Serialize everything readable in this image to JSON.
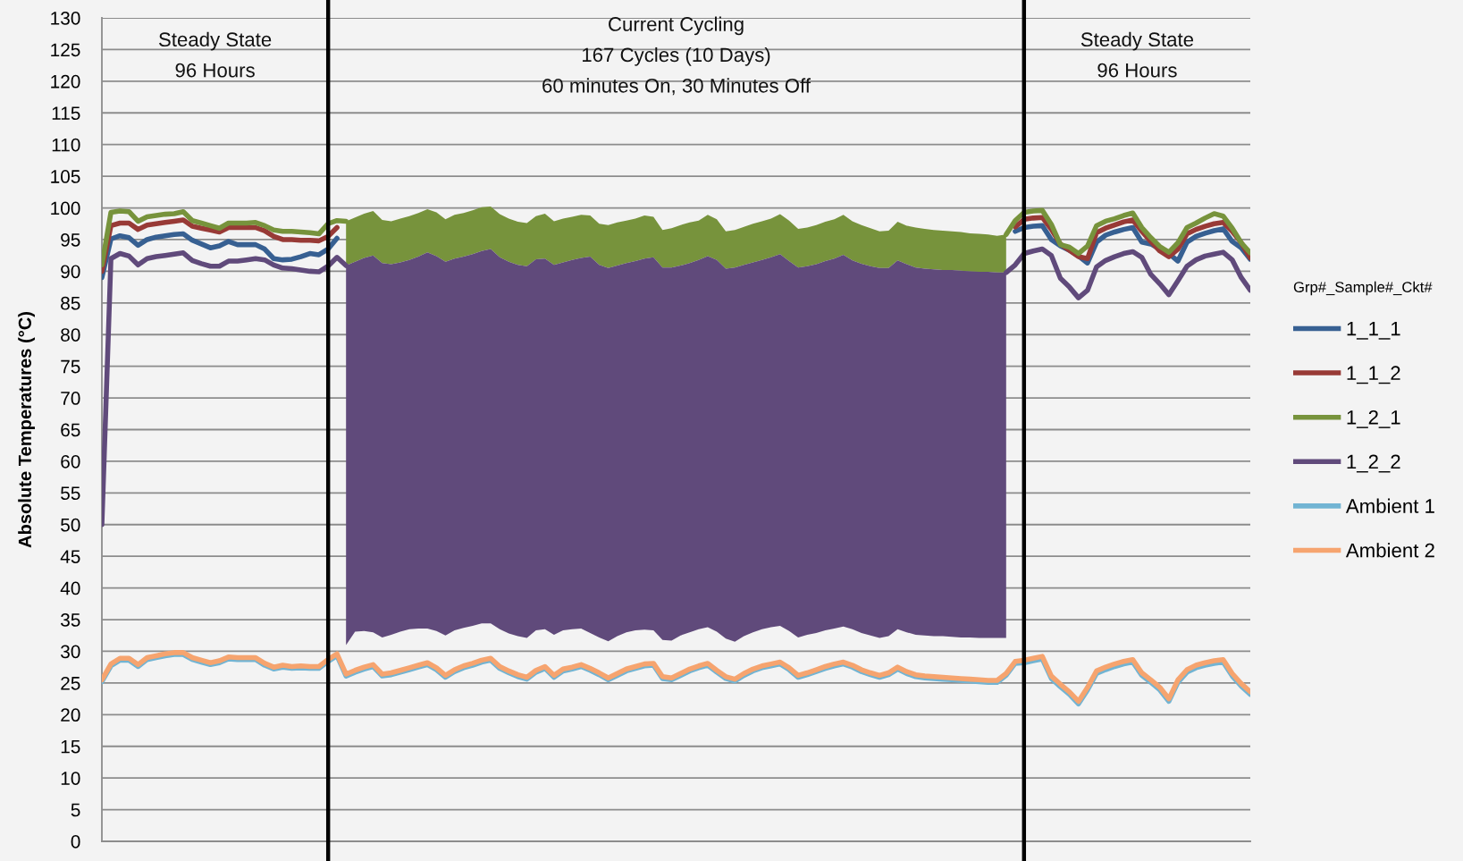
{
  "chart_data": {
    "type": "line",
    "ylabel": "Absolute Temperatures (°C)",
    "legend_title": "Grp#_Sample#_Ckt#",
    "annotations": [
      "Steady State\n96 Hours",
      "Current Cycling\n167 Cycles (10 Days)\n60 minutes On, 30 Minutes Off",
      "Steady State\n96 Hours"
    ],
    "categories": [
      null,
      null,
      null,
      null,
      null,
      null,
      null,
      null,
      null,
      null,
      null,
      null,
      null,
      null,
      null,
      null,
      null,
      null,
      null,
      null,
      null,
      null,
      null,
      null,
      null,
      null,
      null,
      null,
      null,
      null,
      null,
      null,
      null,
      null,
      null,
      null,
      null,
      null,
      null,
      null,
      null,
      null,
      null,
      null,
      null,
      null,
      null,
      null,
      null,
      null,
      null,
      null,
      null,
      null,
      null,
      null,
      null,
      null,
      null,
      null,
      null,
      null,
      null,
      null,
      null,
      null,
      null,
      null,
      null,
      null,
      null,
      null,
      null,
      null,
      null,
      null,
      null,
      null,
      null,
      null,
      null,
      null,
      null,
      null,
      null,
      null,
      null,
      null,
      null,
      null,
      null,
      null,
      null,
      null,
      null,
      null,
      null,
      null,
      null,
      null,
      null,
      null,
      null,
      null,
      null,
      null,
      null,
      null,
      null,
      null,
      null,
      null,
      null,
      null,
      null,
      null,
      null,
      null,
      null,
      null,
      null,
      null,
      null,
      null,
      null,
      null,
      null,
      null
    ],
    "series": [
      {
        "name": "1_1_1",
        "color": "#376092",
        "values": [
          89,
          95.1,
          95.6,
          95.3,
          94.1,
          95.0,
          95.4,
          95.6,
          95.8,
          95.9,
          94.9,
          94.3,
          93.7,
          94.0,
          94.7,
          94.2,
          94.2,
          94.2,
          93.5,
          92.0,
          91.8,
          91.9,
          92.3,
          92.8,
          92.6,
          93.5,
          95.2,
          null,
          null,
          null,
          null,
          null,
          null,
          null,
          null,
          null,
          null,
          null,
          null,
          null,
          null,
          null,
          null,
          null,
          null,
          null,
          null,
          null,
          null,
          null,
          null,
          null,
          null,
          null,
          null,
          null,
          null,
          null,
          null,
          null,
          null,
          null,
          null,
          null,
          null,
          null,
          null,
          null,
          null,
          null,
          null,
          null,
          null,
          null,
          null,
          null,
          null,
          null,
          null,
          null,
          null,
          null,
          null,
          null,
          null,
          null,
          null,
          null,
          null,
          null,
          null,
          null,
          null,
          null,
          null,
          null,
          null,
          null,
          null,
          null,
          null,
          96.3,
          96.9,
          97.1,
          97.2,
          95.0,
          94.0,
          93.3,
          92.4,
          91.3,
          94.6,
          95.7,
          96.2,
          96.6,
          96.9,
          94.6,
          94.3,
          93.5,
          92.8,
          91.6,
          94.6,
          95.5,
          96.0,
          96.4,
          96.7,
          94.7,
          93.7,
          91.9
        ]
      },
      {
        "name": "1_1_2",
        "color": "#983a36",
        "values": [
          90,
          97.2,
          97.6,
          97.6,
          96.6,
          97.3,
          97.5,
          97.7,
          97.9,
          98.1,
          97.1,
          96.8,
          96.5,
          96.2,
          96.9,
          96.9,
          96.9,
          96.9,
          96.4,
          95.5,
          95.0,
          95.0,
          94.9,
          94.9,
          94.8,
          95.5,
          96.9,
          null,
          null,
          null,
          null,
          null,
          null,
          null,
          null,
          null,
          null,
          null,
          null,
          null,
          null,
          null,
          null,
          null,
          null,
          null,
          null,
          null,
          null,
          null,
          null,
          null,
          null,
          null,
          null,
          null,
          null,
          null,
          null,
          null,
          null,
          null,
          null,
          null,
          null,
          null,
          null,
          null,
          null,
          null,
          null,
          null,
          null,
          null,
          null,
          null,
          null,
          null,
          null,
          null,
          null,
          null,
          null,
          null,
          null,
          null,
          null,
          null,
          null,
          null,
          null,
          null,
          null,
          null,
          null,
          null,
          null,
          null,
          null,
          null,
          null,
          97.0,
          98.2,
          98.4,
          98.5,
          96.6,
          94.3,
          93.3,
          92.3,
          92.0,
          96.1,
          96.8,
          97.3,
          97.8,
          98.1,
          96.3,
          94.7,
          93.2,
          92.3,
          93.5,
          95.9,
          96.6,
          97.1,
          97.5,
          97.7,
          96.3,
          94.5,
          92.1
        ]
      },
      {
        "name": "1_2_1",
        "color": "#77933c",
        "values": [
          91,
          99.3,
          99.5,
          99.4,
          97.9,
          98.6,
          98.8,
          99.0,
          99.1,
          99.4,
          98.0,
          97.6,
          97.2,
          96.8,
          97.6,
          97.6,
          97.6,
          97.7,
          97.2,
          96.5,
          96.3,
          96.3,
          96.2,
          96.1,
          95.9,
          97.5,
          98.0,
          97.9,
          null,
          null,
          null,
          null,
          null,
          null,
          null,
          null,
          null,
          null,
          null,
          null,
          null,
          null,
          null,
          null,
          null,
          null,
          null,
          null,
          null,
          null,
          null,
          null,
          null,
          null,
          null,
          null,
          null,
          null,
          null,
          null,
          null,
          null,
          null,
          null,
          null,
          null,
          null,
          null,
          null,
          null,
          null,
          null,
          null,
          null,
          null,
          null,
          null,
          null,
          null,
          null,
          null,
          null,
          null,
          null,
          null,
          null,
          null,
          null,
          null,
          null,
          null,
          null,
          null,
          null,
          null,
          null,
          null,
          null,
          null,
          null,
          95.8,
          98.0,
          99.3,
          99.5,
          99.6,
          97.4,
          94.2,
          93.8,
          92.8,
          94.0,
          97.2,
          97.9,
          98.3,
          98.8,
          99.2,
          96.9,
          95.3,
          93.9,
          93.0,
          94.5,
          96.9,
          97.6,
          98.4,
          99.1,
          98.7,
          96.8,
          94.5,
          92.9
        ],
        "lower": [
          null,
          null,
          null,
          null,
          null,
          null,
          null,
          null,
          null,
          null,
          null,
          null,
          null,
          null,
          null,
          null,
          null,
          null,
          null,
          null,
          null,
          null,
          null,
          null,
          null,
          null,
          null,
          90.9,
          91.5,
          92.1,
          92.5,
          91.3,
          91.1,
          91.4,
          91.8,
          92.3,
          93.0,
          92.4,
          91.5,
          92.0,
          92.3,
          92.7,
          93.2,
          93.5,
          92.2,
          91.5,
          91.0,
          90.8,
          91.9,
          92.0,
          91.0,
          91.4,
          91.8,
          92.1,
          92.3,
          91.0,
          90.5,
          90.9,
          91.3,
          91.6,
          92.0,
          92.2,
          90.6,
          90.6,
          90.9,
          91.3,
          91.8,
          92.4,
          91.8,
          90.4,
          90.6,
          91.0,
          91.4,
          91.8,
          92.2,
          92.7,
          91.6,
          90.6,
          90.8,
          91.1,
          91.6,
          92.0,
          92.6,
          91.7,
          91.2,
          90.8,
          90.5,
          90.5,
          91.7,
          91.1,
          90.6,
          90.4,
          90.3,
          90.2,
          90.2,
          90.1,
          90.0,
          89.9,
          89.9,
          89.8,
          89.8,
          null,
          null,
          null,
          null,
          null,
          null,
          null,
          null,
          null,
          null,
          null,
          null,
          null,
          null,
          null,
          null,
          null,
          null,
          null,
          null,
          null,
          null,
          null,
          null,
          null,
          null,
          null
        ],
        "upper": [
          null,
          null,
          null,
          null,
          null,
          null,
          null,
          null,
          null,
          null,
          null,
          null,
          null,
          null,
          null,
          null,
          null,
          null,
          null,
          null,
          null,
          null,
          null,
          null,
          null,
          null,
          null,
          97.9,
          98.5,
          99.1,
          99.5,
          98.1,
          97.9,
          98.3,
          98.7,
          99.2,
          99.8,
          99.3,
          98.2,
          98.9,
          99.2,
          99.6,
          100.1,
          100.2,
          99.0,
          98.3,
          97.8,
          97.6,
          98.7,
          99.1,
          97.9,
          98.3,
          98.6,
          98.9,
          98.8,
          97.5,
          97.3,
          97.7,
          98.0,
          98.3,
          98.8,
          98.6,
          96.5,
          96.8,
          97.3,
          97.7,
          98.0,
          98.9,
          98.2,
          96.3,
          96.5,
          97.0,
          97.5,
          97.9,
          98.3,
          99.0,
          98.0,
          96.7,
          96.9,
          97.3,
          97.8,
          98.2,
          98.9,
          97.9,
          97.3,
          96.8,
          96.3,
          96.4,
          97.8,
          97.2,
          96.9,
          96.7,
          96.5,
          96.4,
          96.3,
          96.2,
          96.0,
          95.9,
          95.8,
          95.6,
          95.8,
          null,
          null,
          null,
          null,
          null,
          null,
          null,
          null,
          null,
          null,
          null,
          null,
          null,
          null,
          null,
          null,
          null,
          null,
          null,
          null,
          null,
          null,
          null,
          null,
          null,
          null,
          null
        ]
      },
      {
        "name": "1_2_2",
        "color": "#604a7b",
        "values": [
          50,
          92.0,
          92.8,
          92.4,
          91.0,
          92.0,
          92.3,
          92.5,
          92.7,
          92.9,
          91.7,
          91.2,
          90.8,
          90.8,
          91.6,
          91.6,
          91.8,
          92.0,
          91.8,
          91.0,
          90.5,
          90.4,
          90.2,
          90.0,
          89.9,
          90.8,
          92.2,
          90.9,
          null,
          null,
          null,
          null,
          null,
          null,
          null,
          null,
          null,
          null,
          null,
          null,
          null,
          null,
          null,
          null,
          null,
          null,
          null,
          null,
          null,
          null,
          null,
          null,
          null,
          null,
          null,
          null,
          null,
          null,
          null,
          null,
          null,
          null,
          null,
          null,
          null,
          null,
          null,
          null,
          null,
          null,
          null,
          null,
          null,
          null,
          null,
          null,
          null,
          null,
          null,
          null,
          null,
          null,
          null,
          null,
          null,
          null,
          null,
          null,
          null,
          null,
          null,
          null,
          null,
          null,
          null,
          null,
          null,
          null,
          null,
          null,
          89.8,
          91.0,
          92.8,
          93.2,
          93.5,
          92.5,
          88.9,
          87.5,
          85.8,
          87.0,
          90.7,
          91.7,
          92.3,
          92.8,
          93.1,
          92.2,
          89.5,
          88.0,
          86.3,
          88.5,
          90.8,
          91.8,
          92.4,
          92.7,
          93.0,
          91.8,
          89.0,
          87.0
        ],
        "lower": [
          null,
          null,
          null,
          null,
          null,
          null,
          null,
          null,
          null,
          null,
          null,
          null,
          null,
          null,
          null,
          null,
          null,
          null,
          null,
          null,
          null,
          null,
          null,
          null,
          null,
          null,
          null,
          31.0,
          33.1,
          33.2,
          33.0,
          32.2,
          32.6,
          33.1,
          33.5,
          33.6,
          33.6,
          33.2,
          32.5,
          33.3,
          33.7,
          34.0,
          34.4,
          34.4,
          33.5,
          32.8,
          32.4,
          32.1,
          33.3,
          33.5,
          32.6,
          33.3,
          33.5,
          33.6,
          32.9,
          32.2,
          31.6,
          32.4,
          33.0,
          33.3,
          33.4,
          33.3,
          31.8,
          31.7,
          32.5,
          33.0,
          33.5,
          33.8,
          33.1,
          32.0,
          31.5,
          32.4,
          33.0,
          33.5,
          33.8,
          34.0,
          33.2,
          32.2,
          32.6,
          32.9,
          33.3,
          33.6,
          33.9,
          33.5,
          32.9,
          32.5,
          32.1,
          32.4,
          33.5,
          33.0,
          32.6,
          32.5,
          32.4,
          32.4,
          32.3,
          32.2,
          32.2,
          32.1,
          32.1,
          32.1,
          32.1,
          null,
          null,
          null,
          null,
          null,
          null,
          null,
          null,
          null,
          null,
          null,
          null,
          null,
          null,
          null,
          null,
          null,
          null,
          null,
          null,
          null,
          null,
          null,
          null,
          null,
          null,
          null
        ],
        "upper": [
          null,
          null,
          null,
          null,
          null,
          null,
          null,
          null,
          null,
          null,
          null,
          null,
          null,
          null,
          null,
          null,
          null,
          null,
          null,
          null,
          null,
          null,
          null,
          null,
          null,
          null,
          null,
          90.9,
          91.5,
          92.1,
          92.5,
          91.3,
          91.1,
          91.4,
          91.8,
          92.3,
          93.0,
          92.4,
          91.5,
          92.0,
          92.3,
          92.7,
          93.2,
          93.5,
          92.2,
          91.5,
          91.0,
          90.8,
          91.9,
          92.0,
          91.0,
          91.4,
          91.8,
          92.1,
          92.3,
          91.0,
          90.5,
          90.9,
          91.3,
          91.6,
          92.0,
          92.2,
          90.6,
          90.6,
          90.9,
          91.3,
          91.8,
          92.4,
          91.8,
          90.4,
          90.6,
          91.0,
          91.4,
          91.8,
          92.2,
          92.7,
          91.6,
          90.6,
          90.8,
          91.1,
          91.6,
          92.0,
          92.6,
          91.7,
          91.2,
          90.8,
          90.5,
          90.5,
          91.7,
          91.1,
          90.6,
          90.4,
          90.3,
          90.2,
          90.2,
          90.1,
          90.0,
          89.9,
          89.9,
          89.8,
          89.8,
          null,
          null,
          null,
          null,
          null,
          null,
          null,
          null,
          null,
          null,
          null,
          null,
          null,
          null,
          null,
          null,
          null,
          null,
          null,
          null,
          null,
          null,
          null,
          null,
          null,
          null,
          null
        ]
      },
      {
        "name": "Ambient 1",
        "color": "#72b4d3",
        "values": [
          25.2,
          27.7,
          28.6,
          28.6,
          27.6,
          28.7,
          29.0,
          29.3,
          29.5,
          29.5,
          28.7,
          28.3,
          27.9,
          28.2,
          28.8,
          28.7,
          28.7,
          28.7,
          27.8,
          27.2,
          27.5,
          27.3,
          27.4,
          27.3,
          27.3,
          28.4,
          29.3,
          26.1,
          26.7,
          27.2,
          27.6,
          26.1,
          26.3,
          26.7,
          27.1,
          27.5,
          27.9,
          27.1,
          25.9,
          26.8,
          27.4,
          27.8,
          28.3,
          28.6,
          27.3,
          26.6,
          26.0,
          25.6,
          26.7,
          27.3,
          25.9,
          26.9,
          27.2,
          27.6,
          27.0,
          26.3,
          25.5,
          26.2,
          26.9,
          27.3,
          27.7,
          27.8,
          25.7,
          25.5,
          26.2,
          26.9,
          27.4,
          27.8,
          26.7,
          25.7,
          25.3,
          26.2,
          26.9,
          27.4,
          27.7,
          28.0,
          27.1,
          25.9,
          26.3,
          26.8,
          27.3,
          27.7,
          28.0,
          27.5,
          26.8,
          26.3,
          25.9,
          26.3,
          27.2,
          26.5,
          26.0,
          25.8,
          25.7,
          25.6,
          25.5,
          25.4,
          25.3,
          25.2,
          25.1,
          25.1,
          26.2,
          28.1,
          28.2,
          28.5,
          28.8,
          25.7,
          24.4,
          23.2,
          21.7,
          23.9,
          26.5,
          27.1,
          27.6,
          28.0,
          28.3,
          26.2,
          25.1,
          23.9,
          22.1,
          25.1,
          26.7,
          27.4,
          27.8,
          28.1,
          28.3,
          26.1,
          24.5,
          23.2
        ]
      },
      {
        "name": "Ambient 2",
        "color": "#f6a46f",
        "values": [
          25.5,
          28.0,
          28.9,
          28.9,
          27.9,
          29.0,
          29.3,
          29.6,
          29.8,
          29.8,
          29.0,
          28.6,
          28.2,
          28.5,
          29.1,
          29.0,
          29.0,
          29.0,
          28.1,
          27.5,
          27.8,
          27.6,
          27.7,
          27.6,
          27.6,
          28.7,
          29.6,
          26.4,
          27.0,
          27.5,
          27.9,
          26.4,
          26.6,
          27.0,
          27.4,
          27.8,
          28.2,
          27.4,
          26.2,
          27.1,
          27.7,
          28.1,
          28.6,
          28.9,
          27.6,
          26.9,
          26.3,
          25.9,
          27.0,
          27.6,
          26.2,
          27.2,
          27.5,
          27.9,
          27.3,
          26.6,
          25.8,
          26.5,
          27.2,
          27.6,
          28.0,
          28.1,
          26.0,
          25.8,
          26.5,
          27.2,
          27.7,
          28.1,
          27.0,
          26.0,
          25.6,
          26.5,
          27.2,
          27.7,
          28.0,
          28.3,
          27.4,
          26.2,
          26.6,
          27.1,
          27.6,
          28.0,
          28.3,
          27.8,
          27.1,
          26.6,
          26.2,
          26.6,
          27.5,
          26.8,
          26.3,
          26.1,
          26.0,
          25.9,
          25.8,
          25.7,
          25.6,
          25.5,
          25.4,
          25.4,
          26.5,
          28.4,
          28.6,
          28.9,
          29.2,
          26.1,
          24.8,
          23.6,
          22.1,
          24.3,
          26.9,
          27.5,
          28.0,
          28.4,
          28.7,
          26.6,
          25.5,
          24.3,
          22.5,
          25.5,
          27.1,
          27.8,
          28.2,
          28.5,
          28.7,
          26.5,
          24.9,
          23.6
        ]
      }
    ],
    "ylim": [
      0,
      130
    ],
    "yticks": [
      0,
      5,
      10,
      15,
      20,
      25,
      30,
      35,
      40,
      45,
      50,
      55,
      60,
      65,
      70,
      75,
      80,
      85,
      90,
      95,
      100,
      105,
      110,
      115,
      120,
      125,
      130
    ],
    "grid": "y",
    "legend": "right",
    "tick_labels": "y"
  }
}
